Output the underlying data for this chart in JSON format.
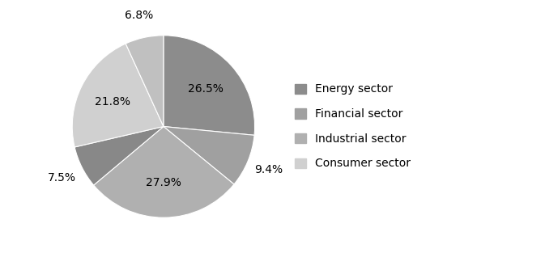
{
  "legend_labels": [
    "Energy sector",
    "Financial sector",
    "Industrial sector",
    "Consumer sector"
  ],
  "values": [
    26.5,
    9.4,
    27.9,
    7.5,
    21.8,
    6.8
  ],
  "colors": [
    "#8c8c8c",
    "#a0a0a0",
    "#b0b0b0",
    "#888888",
    "#d0d0d0",
    "#c0c0c0"
  ],
  "autopct_labels": [
    "26.5%",
    "9.4%",
    "27.9%",
    "7.5%",
    "21.8%",
    "6.8%"
  ],
  "legend_colors": [
    "#8c8c8c",
    "#a0a0a0",
    "#b0b0b0",
    "#d0d0d0"
  ],
  "startangle": 90,
  "fontsize": 10,
  "legend_fontsize": 10
}
